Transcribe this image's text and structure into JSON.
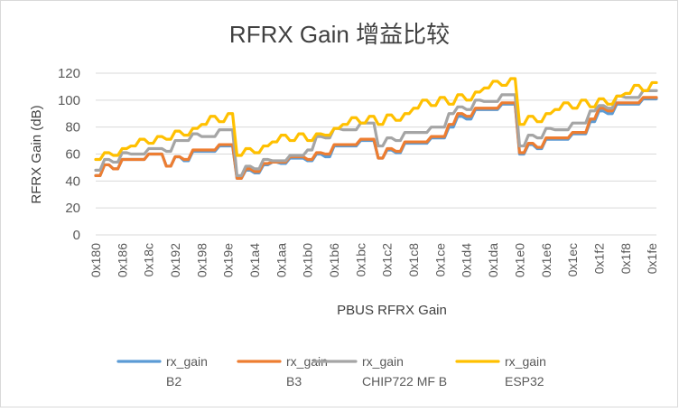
{
  "chart_data": {
    "type": "line",
    "title": "RFRX  Gain 增益比较",
    "xlabel": "PBUS  RFRX  Gain",
    "ylabel": "RFRX Gain (dB)",
    "ylim": [
      0,
      120
    ],
    "yticks": [
      0,
      20,
      40,
      60,
      80,
      100,
      120
    ],
    "grid": true,
    "legend_position": "bottom",
    "x": [
      "0x180",
      "0x181",
      "0x182",
      "0x183",
      "0x184",
      "0x185",
      "0x186",
      "0x187",
      "0x188",
      "0x189",
      "0x18a",
      "0x18b",
      "0x18c",
      "0x18d",
      "0x18e",
      "0x18f",
      "0x190",
      "0x191",
      "0x192",
      "0x193",
      "0x194",
      "0x195",
      "0x196",
      "0x197",
      "0x198",
      "0x199",
      "0x19a",
      "0x19b",
      "0x19c",
      "0x19d",
      "0x19e",
      "0x19f",
      "0x1a0",
      "0x1a1",
      "0x1a2",
      "0x1a3",
      "0x1a4",
      "0x1a5",
      "0x1a6",
      "0x1a7",
      "0x1a8",
      "0x1a9",
      "0x1aa",
      "0x1ab",
      "0x1ac",
      "0x1ad",
      "0x1ae",
      "0x1af",
      "0x1b0",
      "0x1b1",
      "0x1b2",
      "0x1b3",
      "0x1b4",
      "0x1b5",
      "0x1b6",
      "0x1b7",
      "0x1b8",
      "0x1b9",
      "0x1ba",
      "0x1bb",
      "0x1bc",
      "0x1bd",
      "0x1be",
      "0x1bf",
      "0x1c0",
      "0x1c1",
      "0x1c2",
      "0x1c3",
      "0x1c4",
      "0x1c5",
      "0x1c6",
      "0x1c7",
      "0x1c8",
      "0x1c9",
      "0x1ca",
      "0x1cb",
      "0x1cc",
      "0x1cd",
      "0x1ce",
      "0x1cf",
      "0x1d0",
      "0x1d1",
      "0x1d2",
      "0x1d3",
      "0x1d4",
      "0x1d5",
      "0x1d6",
      "0x1d7",
      "0x1d8",
      "0x1d9",
      "0x1da",
      "0x1db",
      "0x1dc",
      "0x1dd",
      "0x1de",
      "0x1df",
      "0x1e0",
      "0x1e1",
      "0x1e2",
      "0x1e3",
      "0x1e4",
      "0x1e5",
      "0x1e6",
      "0x1e7",
      "0x1e8",
      "0x1e9",
      "0x1ea",
      "0x1eb",
      "0x1ec",
      "0x1ed",
      "0x1ee",
      "0x1ef",
      "0x1f0",
      "0x1f1",
      "0x1f2",
      "0x1f3",
      "0x1f4",
      "0x1f5",
      "0x1f6",
      "0x1f7",
      "0x1f8",
      "0x1f9",
      "0x1fa",
      "0x1fb",
      "0x1fc",
      "0x1fd",
      "0x1fe",
      "0x1ff"
    ],
    "x_tick_labels": [
      "0x180",
      "0x186",
      "0x18c",
      "0x192",
      "0x198",
      "0x19e",
      "0x1a4",
      "0x1aa",
      "0x1b0",
      "0x1b6",
      "0x1bc",
      "0x1c2",
      "0x1c8",
      "0x1ce",
      "0x1d4",
      "0x1da",
      "0x1e0",
      "0x1e6",
      "0x1ec",
      "0x1f2",
      "0x1f8",
      "0x1fe"
    ],
    "series": [
      {
        "name": "rx_gain B2",
        "color": "#5b9bd5",
        "values": [
          44,
          44,
          52,
          52,
          49,
          49,
          56,
          56,
          56,
          56,
          56,
          56,
          60,
          60,
          60,
          60,
          51,
          51,
          58,
          58,
          55,
          55,
          62,
          62,
          62,
          62,
          62,
          62,
          66,
          66,
          66,
          66,
          42,
          42,
          48,
          48,
          46,
          46,
          52,
          52,
          54,
          54,
          53,
          53,
          57,
          57,
          57,
          57,
          55,
          55,
          60,
          60,
          58,
          58,
          66,
          66,
          66,
          66,
          66,
          66,
          70,
          70,
          70,
          70,
          57,
          57,
          63,
          63,
          61,
          61,
          68,
          68,
          68,
          68,
          68,
          68,
          72,
          72,
          72,
          72,
          80,
          80,
          88,
          88,
          86,
          86,
          93,
          93,
          93,
          93,
          93,
          93,
          97,
          97,
          97,
          97,
          60,
          60,
          67,
          67,
          64,
          64,
          71,
          71,
          71,
          71,
          71,
          71,
          75,
          75,
          75,
          75,
          84,
          84,
          92,
          92,
          90,
          90,
          97,
          97,
          97,
          97,
          97,
          97,
          101,
          101,
          101,
          101
        ]
      },
      {
        "name": "rx_gain B3",
        "color": "#ed7d31",
        "values": [
          44,
          44,
          52,
          52,
          49,
          49,
          56,
          56,
          56,
          56,
          56,
          56,
          60,
          60,
          60,
          60,
          51,
          51,
          58,
          58,
          56,
          56,
          63,
          63,
          63,
          63,
          63,
          63,
          67,
          67,
          67,
          67,
          42,
          42,
          49,
          49,
          47,
          47,
          53,
          53,
          54,
          54,
          54,
          54,
          58,
          58,
          58,
          58,
          56,
          56,
          61,
          61,
          60,
          60,
          67,
          67,
          67,
          67,
          67,
          67,
          71,
          71,
          71,
          71,
          57,
          57,
          64,
          64,
          62,
          62,
          69,
          69,
          69,
          69,
          69,
          69,
          73,
          73,
          73,
          73,
          82,
          82,
          90,
          90,
          88,
          88,
          94,
          94,
          94,
          94,
          94,
          94,
          98,
          98,
          98,
          98,
          61,
          61,
          68,
          68,
          65,
          65,
          72,
          72,
          72,
          72,
          72,
          72,
          76,
          76,
          76,
          76,
          86,
          86,
          94,
          94,
          92,
          92,
          98,
          98,
          98,
          98,
          98,
          98,
          102,
          102,
          102,
          102
        ]
      },
      {
        "name": "rx_gain CHIP722 MF B",
        "color": "#a5a5a5",
        "values": [
          48,
          48,
          56,
          56,
          54,
          54,
          61,
          61,
          60,
          60,
          60,
          60,
          64,
          64,
          64,
          64,
          62,
          62,
          70,
          70,
          70,
          70,
          75,
          75,
          73,
          73,
          73,
          73,
          78,
          78,
          78,
          78,
          44,
          44,
          51,
          51,
          49,
          49,
          56,
          56,
          55,
          55,
          55,
          55,
          59,
          59,
          59,
          59,
          63,
          63,
          73,
          73,
          72,
          72,
          79,
          79,
          78,
          78,
          78,
          78,
          83,
          83,
          83,
          83,
          66,
          66,
          72,
          72,
          70,
          70,
          76,
          76,
          76,
          76,
          76,
          76,
          80,
          80,
          80,
          80,
          90,
          90,
          95,
          95,
          93,
          93,
          100,
          100,
          99,
          99,
          99,
          99,
          104,
          104,
          104,
          104,
          66,
          66,
          74,
          74,
          72,
          72,
          79,
          79,
          78,
          78,
          78,
          78,
          83,
          83,
          83,
          83,
          92,
          92,
          96,
          96,
          94,
          94,
          103,
          103,
          102,
          102,
          102,
          102,
          107,
          107,
          107,
          107
        ]
      },
      {
        "name": "rx_gain ESP32",
        "color": "#ffc000",
        "values": [
          56,
          56,
          61,
          61,
          59,
          59,
          64,
          64,
          66,
          66,
          71,
          71,
          68,
          68,
          73,
          73,
          71,
          71,
          77,
          77,
          74,
          74,
          79,
          79,
          82,
          82,
          88,
          88,
          84,
          84,
          90,
          90,
          59,
          59,
          64,
          64,
          61,
          61,
          66,
          66,
          69,
          69,
          74,
          74,
          70,
          70,
          75,
          75,
          70,
          70,
          75,
          75,
          74,
          74,
          79,
          79,
          82,
          82,
          87,
          87,
          83,
          83,
          88,
          88,
          82,
          82,
          89,
          89,
          85,
          85,
          90,
          90,
          94,
          94,
          100,
          100,
          96,
          96,
          102,
          102,
          97,
          97,
          104,
          104,
          100,
          100,
          106,
          106,
          109,
          109,
          114,
          114,
          111,
          111,
          116,
          116,
          82,
          82,
          88,
          88,
          84,
          84,
          90,
          90,
          93,
          93,
          98,
          98,
          94,
          94,
          100,
          100,
          95,
          95,
          101,
          101,
          97,
          97,
          103,
          103,
          105,
          105,
          111,
          111,
          107,
          107,
          113,
          113
        ]
      }
    ],
    "legend_lines": [
      [
        "rx_gain",
        "B2"
      ],
      [
        "rx_gain",
        "B3"
      ],
      [
        "rx_gain",
        "CHIP722 MF B"
      ],
      [
        "rx_gain",
        "ESP32"
      ]
    ]
  }
}
